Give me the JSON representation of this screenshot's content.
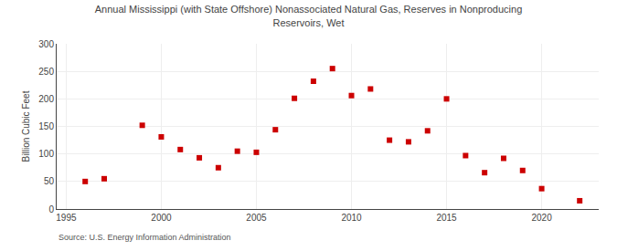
{
  "chart_data": {
    "type": "scatter",
    "title": "Annual Mississippi (with State Offshore) Nonassociated Natural Gas, Reserves in Nonproducing\nReservoirs, Wet",
    "y_label": "Billion Cubic Feet",
    "annotations": [
      "Source: U.S. Energy Information Administration"
    ],
    "x": [
      1996,
      1997,
      1999,
      2000,
      2001,
      2002,
      2003,
      2004,
      2005,
      2006,
      2007,
      2008,
      2009,
      2010,
      2011,
      2012,
      2013,
      2014,
      2015,
      2016,
      2017,
      2018,
      2019,
      2020,
      2022
    ],
    "values": [
      50,
      55,
      152,
      131,
      108,
      93,
      75,
      105,
      103,
      144,
      201,
      232,
      255,
      206,
      218,
      125,
      122,
      142,
      200,
      97,
      66,
      92,
      70,
      37,
      15
    ],
    "color": "#cc0000",
    "marker": "square",
    "xlim": [
      1994.5,
      2023
    ],
    "xticks": [
      1995,
      2000,
      2005,
      2010,
      2015,
      2020
    ],
    "ylim": [
      0,
      300
    ],
    "yticks": [
      0,
      50,
      100,
      150,
      200,
      250,
      300
    ],
    "grid": true
  }
}
